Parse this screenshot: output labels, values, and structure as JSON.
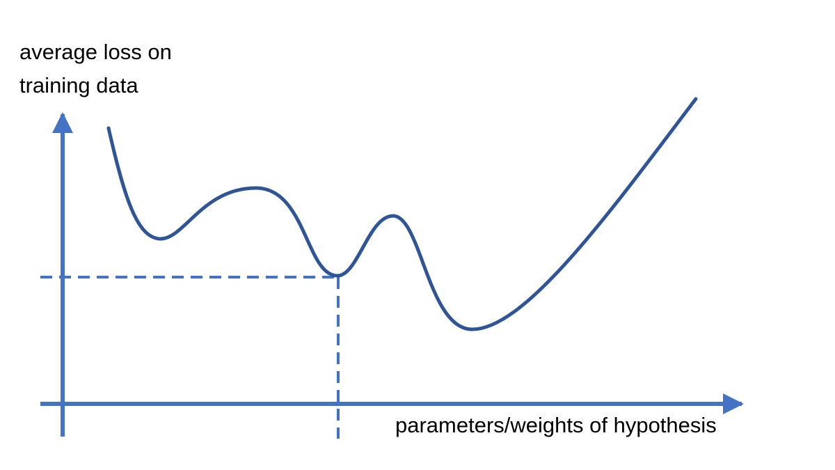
{
  "y_axis": {
    "label_line1": "average loss on",
    "label_line2": "training data"
  },
  "x_axis": {
    "label": "parameters/weights of hypothesis"
  },
  "colors": {
    "axis": "#4472C4",
    "curve": "#2F5597",
    "guide": "#4472C4",
    "text": "#000000"
  },
  "figure": {
    "curve": "loss curve with several local minima",
    "guides": "dashed horizontal and vertical lines marking a local minimum"
  }
}
